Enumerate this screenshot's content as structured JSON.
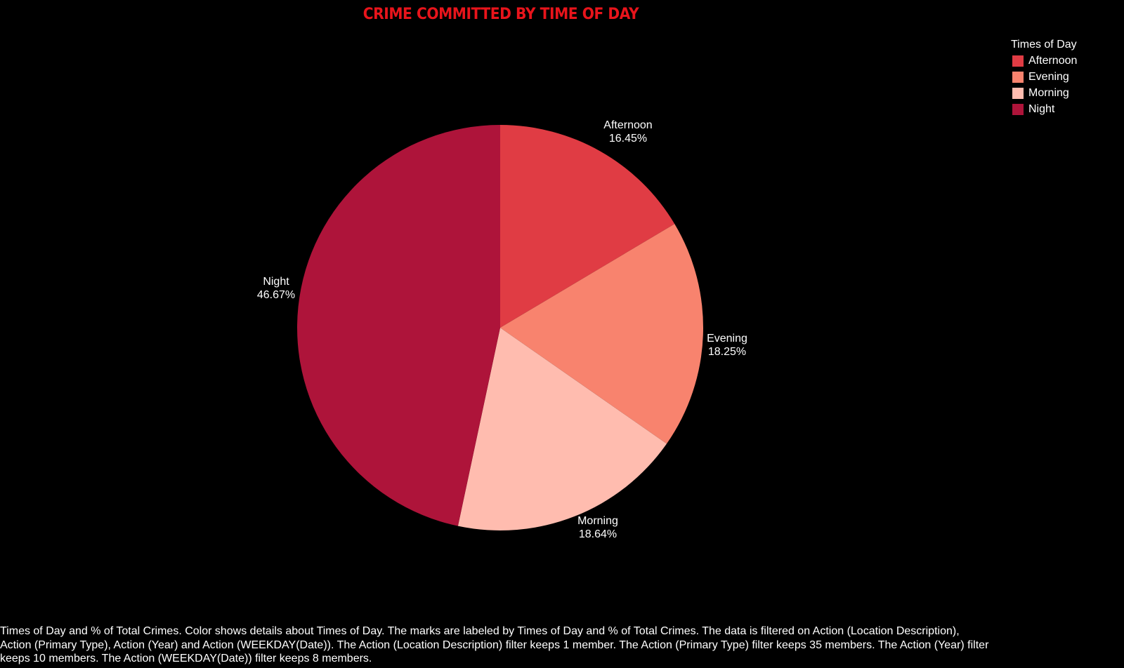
{
  "chart_data": {
    "type": "pie",
    "title": "CRIME COMMITTED BY TIME OF DAY",
    "legend_title": "Times of Day",
    "legend_position": "top-right",
    "slices": [
      {
        "label": "Afternoon",
        "value": 16.45,
        "value_label": "16.45%",
        "color": "#e03c44"
      },
      {
        "label": "Evening",
        "value": 18.25,
        "value_label": "18.25%",
        "color": "#f8836e"
      },
      {
        "label": "Morning",
        "value": 18.64,
        "value_label": "18.64%",
        "color": "#ffbcaf"
      },
      {
        "label": "Night",
        "value": 46.67,
        "value_label": "46.67%",
        "color": "#ae143a"
      }
    ]
  },
  "caption": "Times of Day and % of Total Crimes.  Color shows details about Times of Day.  The marks are labeled by Times of Day and % of Total Crimes. The data is filtered on Action (Location Description), Action (Primary Type), Action (Year) and Action (WEEKDAY(Date)). The Action (Location Description) filter keeps 1 member. The Action (Primary Type) filter keeps 35 members. The Action (Year) filter keeps 10 members. The Action (WEEKDAY(Date)) filter keeps 8 members."
}
